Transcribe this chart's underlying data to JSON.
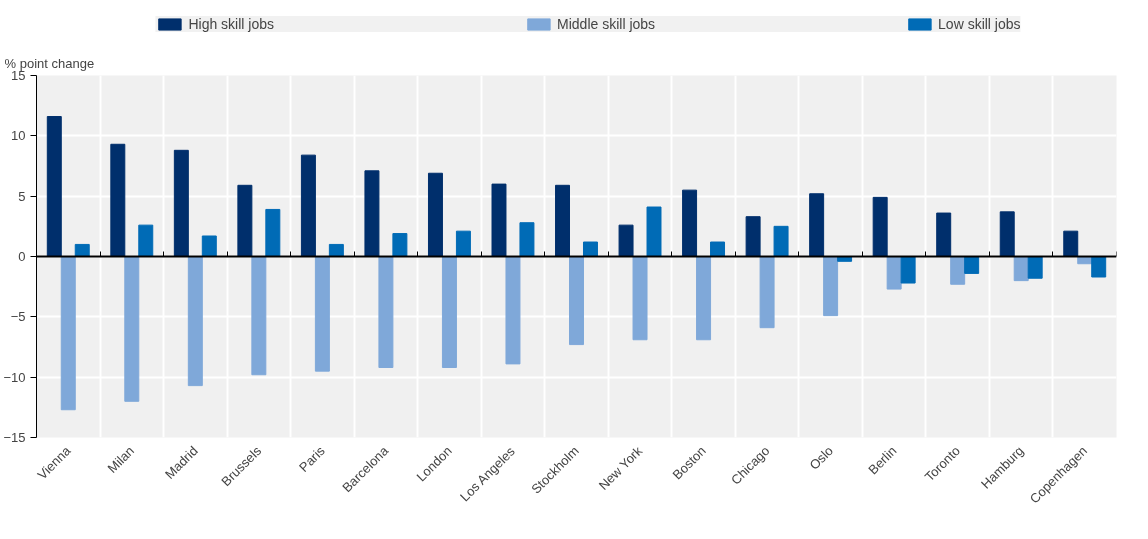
{
  "chart_data": {
    "type": "bar",
    "ylabel": "% point change",
    "categories": [
      "Vienna",
      "Milan",
      "Madrid",
      "Brussels",
      "Paris",
      "Barcelona",
      "London",
      "Los Angeles",
      "Stockholm",
      "New York",
      "Boston",
      "Chicago",
      "Oslo",
      "Berlin",
      "Toronto",
      "Hamburg",
      "Copenhagen"
    ],
    "series": [
      {
        "name": "High skill jobs",
        "color": "#002f6c",
        "values": [
          11.6,
          9.3,
          8.8,
          5.9,
          8.4,
          7.1,
          6.9,
          6.0,
          5.9,
          2.6,
          5.5,
          3.3,
          5.2,
          4.9,
          3.6,
          3.7,
          2.1
        ]
      },
      {
        "name": "Middle skill jobs",
        "color": "#7fa8d9",
        "values": [
          -12.7,
          -12.0,
          -10.7,
          -9.8,
          -9.5,
          -9.2,
          -9.2,
          -8.9,
          -7.3,
          -6.9,
          -6.9,
          -5.9,
          -4.9,
          -2.7,
          -2.3,
          -2.0,
          -0.6
        ]
      },
      {
        "name": "Low skill jobs",
        "color": "#006bb6",
        "values": [
          1.0,
          2.6,
          1.7,
          3.9,
          1.0,
          1.9,
          2.1,
          2.8,
          1.2,
          4.1,
          1.2,
          2.5,
          -0.4,
          -2.2,
          -1.4,
          -1.8,
          -1.7
        ]
      }
    ],
    "ylim": [
      -15,
      15
    ],
    "yticks": [
      -15,
      -10,
      -5,
      0,
      5,
      10,
      15
    ],
    "grid": true,
    "legend": "top"
  }
}
